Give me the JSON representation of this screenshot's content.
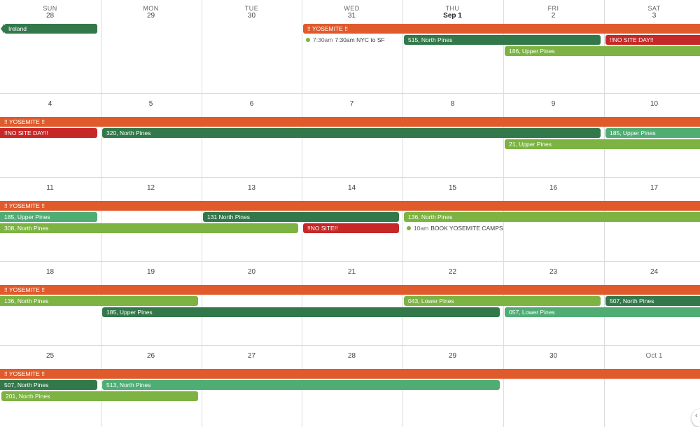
{
  "weekdays": [
    "SUN",
    "MON",
    "TUE",
    "WED",
    "THU",
    "FRI",
    "SAT"
  ],
  "weeks": [
    {
      "days": [
        "28",
        "29",
        "30",
        "31",
        "Sep 1",
        "2",
        "3"
      ],
      "events": [
        {
          "label": "Ireland",
          "start": 0,
          "end": 0,
          "lane": 0,
          "color": "#33784a",
          "arrow": true
        },
        {
          "label": "!! YOSEMITE !!",
          "start": 3,
          "end": 6,
          "lane": 0,
          "color": "#e05a2b",
          "cont_right": true
        },
        {
          "label": "515, North Pines",
          "start": 4,
          "end": 5,
          "lane": 1,
          "color": "#33784a"
        },
        {
          "label": "!!NO SITE DAY!!",
          "start": 6,
          "end": 6,
          "lane": 1,
          "color": "#c62828",
          "cont_right": true
        },
        {
          "label": "186, Upper Pines",
          "start": 5,
          "end": 6,
          "lane": 2,
          "color": "#7cb342",
          "cont_right": true
        }
      ],
      "timed": [
        {
          "time": "7:30am",
          "label": "7:30am NYC to SF",
          "col": 3,
          "lane": 1,
          "dot_color": "#7cb342"
        }
      ]
    },
    {
      "days": [
        "4",
        "5",
        "6",
        "7",
        "8",
        "9",
        "10"
      ],
      "events": [
        {
          "label": "!! YOSEMITE !!",
          "start": 0,
          "end": 6,
          "lane": 0,
          "color": "#e05a2b",
          "cont_left": true,
          "cont_right": true
        },
        {
          "label": "!!NO SITE DAY!!",
          "start": 0,
          "end": 0,
          "lane": 1,
          "color": "#c62828",
          "cont_left": true
        },
        {
          "label": "320, North Pines",
          "start": 1,
          "end": 5,
          "lane": 1,
          "color": "#33784a"
        },
        {
          "label": "185, Upper Pines",
          "start": 6,
          "end": 6,
          "lane": 1,
          "color": "#4fad74",
          "cont_right": true
        },
        {
          "label": "21, Upper Pines",
          "start": 5,
          "end": 6,
          "lane": 2,
          "color": "#7cb342",
          "cont_right": true
        }
      ],
      "timed": []
    },
    {
      "days": [
        "11",
        "12",
        "13",
        "14",
        "15",
        "16",
        "17"
      ],
      "events": [
        {
          "label": "!! YOSEMITE !!",
          "start": 0,
          "end": 6,
          "lane": 0,
          "color": "#e05a2b",
          "cont_left": true,
          "cont_right": true
        },
        {
          "label": "185, Upper Pines",
          "start": 0,
          "end": 0,
          "lane": 1,
          "color": "#4fad74",
          "cont_left": true
        },
        {
          "label": "131 North Pines",
          "start": 2,
          "end": 3,
          "lane": 1,
          "color": "#33784a"
        },
        {
          "label": "136, North Pines",
          "start": 4,
          "end": 6,
          "lane": 1,
          "color": "#7cb342",
          "cont_right": true
        },
        {
          "label": "308, North Pines",
          "start": 0,
          "end": 2,
          "lane": 2,
          "color": "#7cb342",
          "cont_left": true
        },
        {
          "label": "!!NO SITE!!",
          "start": 3,
          "end": 3,
          "lane": 2,
          "color": "#c62828"
        }
      ],
      "timed": [
        {
          "time": "10am",
          "label": "BOOK YOSEMITE CAMPS",
          "col": 4,
          "lane": 2,
          "dot_color": "#7cb342"
        }
      ]
    },
    {
      "days": [
        "18",
        "19",
        "20",
        "21",
        "22",
        "23",
        "24"
      ],
      "events": [
        {
          "label": "!! YOSEMITE !!",
          "start": 0,
          "end": 6,
          "lane": 0,
          "color": "#e05a2b",
          "cont_left": true,
          "cont_right": true
        },
        {
          "label": "136, North Pines",
          "start": 0,
          "end": 1,
          "lane": 1,
          "color": "#7cb342",
          "cont_left": true
        },
        {
          "label": "043, Lower Pines",
          "start": 4,
          "end": 5,
          "lane": 1,
          "color": "#7cb342"
        },
        {
          "label": "507, North Pines",
          "start": 6,
          "end": 6,
          "lane": 1,
          "color": "#33784a",
          "cont_right": true
        },
        {
          "label": "185, Upper Pines",
          "start": 1,
          "end": 4,
          "lane": 2,
          "color": "#33784a"
        },
        {
          "label": "057, Lower Pines",
          "start": 5,
          "end": 6,
          "lane": 2,
          "color": "#4fad74",
          "cont_right": true
        }
      ],
      "timed": []
    },
    {
      "days": [
        "25",
        "26",
        "27",
        "28",
        "29",
        "30",
        "Oct 1"
      ],
      "events": [
        {
          "label": "!! YOSEMITE !!",
          "start": 0,
          "end": 6,
          "lane": 0,
          "color": "#e05a2b",
          "cont_left": true,
          "cont_right": true
        },
        {
          "label": "507, North Pines",
          "start": 0,
          "end": 0,
          "lane": 1,
          "color": "#33784a",
          "cont_left": true
        },
        {
          "label": "513, North Pines",
          "start": 1,
          "end": 4,
          "lane": 1,
          "color": "#4fad74"
        },
        {
          "label": "201, North Pines",
          "start": 0,
          "end": 1,
          "lane": 2,
          "color": "#7cb342"
        }
      ],
      "timed": []
    }
  ],
  "fab": {
    "icon": "chevron-left-icon",
    "glyph": "‹"
  }
}
